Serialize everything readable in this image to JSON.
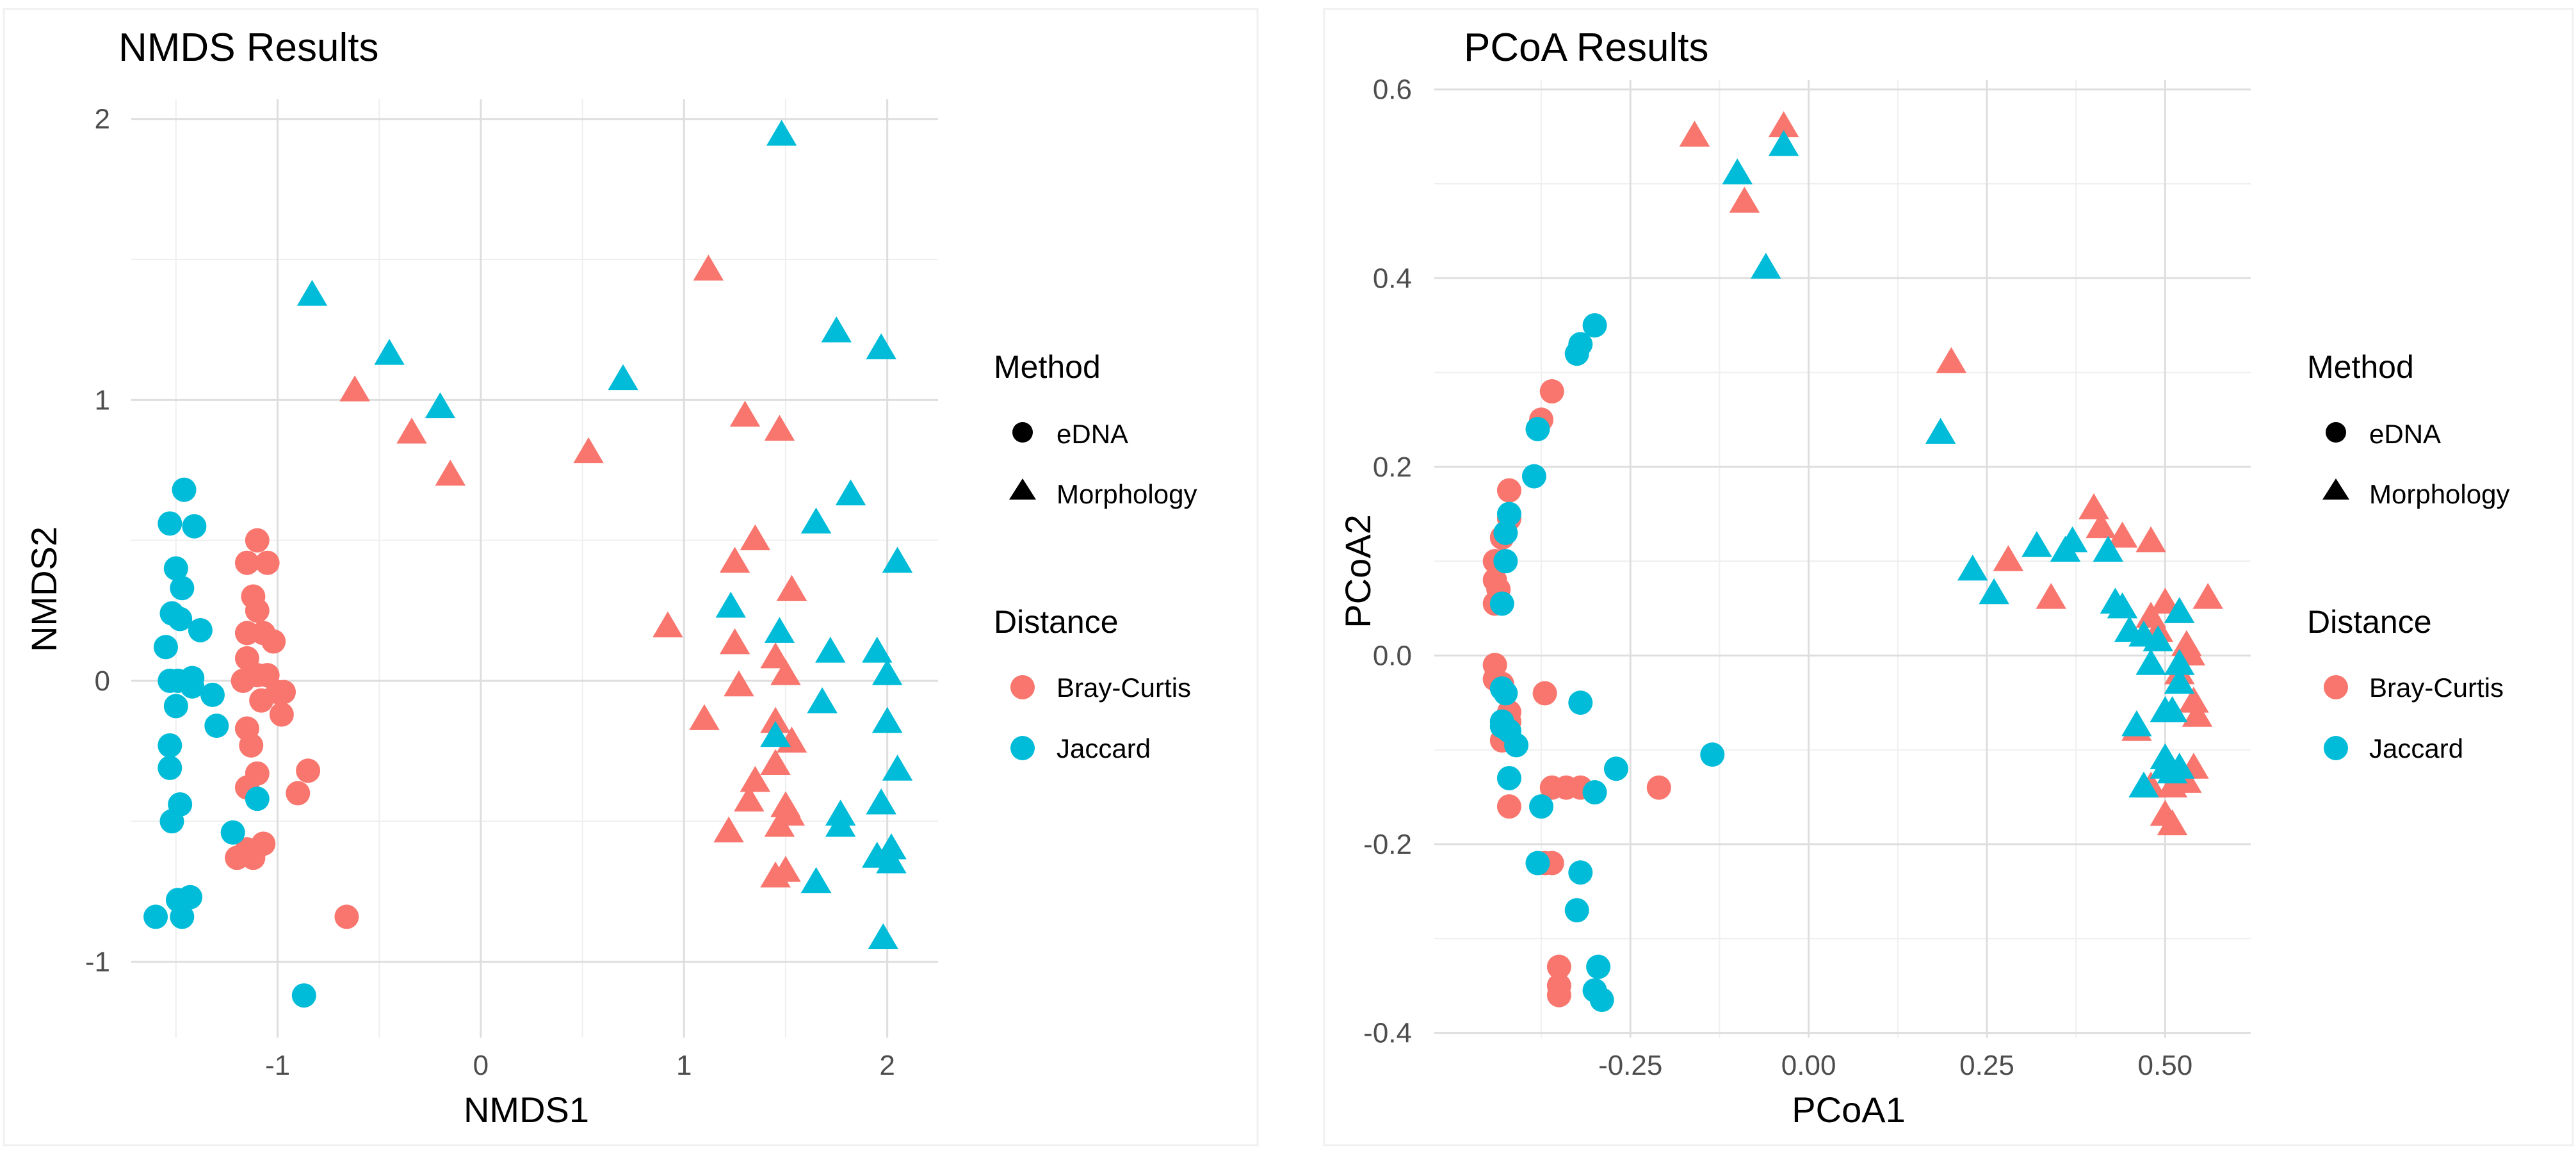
{
  "colors": {
    "bray_curtis": "#F8766D",
    "jaccard": "#00BCD8",
    "grid_major": "#DEDEDE",
    "grid_minor": "#EFEFEF",
    "text": "#000000",
    "tick_text": "#4D4D4D",
    "panel_border": "#F0F0F0"
  },
  "chart_data": [
    {
      "type": "scatter",
      "title": "NMDS Results",
      "xlabel": "NMDS1",
      "ylabel": "NMDS2",
      "xlim": [
        -1.72,
        2.25
      ],
      "ylim": [
        -1.27,
        2.07
      ],
      "xticks": [
        -1,
        0,
        1,
        2
      ],
      "xtick_labels": [
        "-1",
        "0",
        "1",
        "2"
      ],
      "yticks": [
        -1,
        0,
        1,
        2
      ],
      "ytick_labels": [
        "-1",
        "0",
        "1",
        "2"
      ],
      "legend": {
        "placement": "right",
        "method_title": "Method",
        "method_entries": [
          {
            "label": "eDNA",
            "shape": "circle"
          },
          {
            "label": "Morphology",
            "shape": "triangle"
          }
        ],
        "distance_title": "Distance",
        "distance_entries": [
          {
            "label": "Bray-Curtis",
            "color_key": "bray_curtis"
          },
          {
            "label": "Jaccard",
            "color_key": "jaccard"
          }
        ]
      },
      "series": [
        {
          "name": "Bray-Curtis eDNA",
          "shape": "circle",
          "color_key": "bray_curtis",
          "points": [
            [
              -1.1,
              0.5
            ],
            [
              -1.15,
              0.42
            ],
            [
              -1.05,
              0.42
            ],
            [
              -1.12,
              0.3
            ],
            [
              -1.1,
              0.25
            ],
            [
              -1.15,
              0.17
            ],
            [
              -1.07,
              0.17
            ],
            [
              -1.02,
              0.14
            ],
            [
              -1.15,
              0.08
            ],
            [
              -1.1,
              0.02
            ],
            [
              -1.05,
              0.02
            ],
            [
              -1.17,
              0.0
            ],
            [
              -1.0,
              -0.04
            ],
            [
              -1.08,
              -0.07
            ],
            [
              -0.97,
              -0.04
            ],
            [
              -0.98,
              -0.12
            ],
            [
              -1.15,
              -0.17
            ],
            [
              -1.13,
              -0.23
            ],
            [
              -1.1,
              -0.33
            ],
            [
              -0.85,
              -0.32
            ],
            [
              -0.9,
              -0.4
            ],
            [
              -1.15,
              -0.38
            ],
            [
              -1.07,
              -0.58
            ],
            [
              -1.15,
              -0.6
            ],
            [
              -1.2,
              -0.63
            ],
            [
              -1.12,
              -0.63
            ],
            [
              -0.66,
              -0.84
            ]
          ]
        },
        {
          "name": "Jaccard eDNA",
          "shape": "circle",
          "color_key": "jaccard",
          "points": [
            [
              -1.46,
              0.68
            ],
            [
              -1.53,
              0.56
            ],
            [
              -1.41,
              0.55
            ],
            [
              -1.5,
              0.4
            ],
            [
              -1.47,
              0.33
            ],
            [
              -1.52,
              0.24
            ],
            [
              -1.48,
              0.22
            ],
            [
              -1.38,
              0.18
            ],
            [
              -1.55,
              0.12
            ],
            [
              -1.49,
              0.0
            ],
            [
              -1.42,
              0.01
            ],
            [
              -1.53,
              0.0
            ],
            [
              -1.42,
              -0.02
            ],
            [
              -1.32,
              -0.05
            ],
            [
              -1.5,
              -0.09
            ],
            [
              -1.3,
              -0.16
            ],
            [
              -1.53,
              -0.23
            ],
            [
              -1.53,
              -0.31
            ],
            [
              -1.48,
              -0.44
            ],
            [
              -1.52,
              -0.5
            ],
            [
              -1.1,
              -0.42
            ],
            [
              -1.22,
              -0.54
            ],
            [
              -1.43,
              -0.77
            ],
            [
              -1.49,
              -0.78
            ],
            [
              -1.6,
              -0.84
            ],
            [
              -1.47,
              -0.84
            ],
            [
              -0.87,
              -1.12
            ]
          ]
        },
        {
          "name": "Bray-Curtis Morphology",
          "shape": "triangle",
          "color_key": "bray_curtis",
          "points": [
            [
              1.12,
              1.46
            ],
            [
              -0.62,
              1.03
            ],
            [
              -0.34,
              0.88
            ],
            [
              -0.15,
              0.73
            ],
            [
              0.53,
              0.81
            ],
            [
              1.3,
              0.94
            ],
            [
              1.47,
              0.89
            ],
            [
              1.35,
              0.5
            ],
            [
              1.25,
              0.42
            ],
            [
              1.53,
              0.32
            ],
            [
              0.92,
              0.19
            ],
            [
              1.25,
              0.13
            ],
            [
              1.45,
              0.08
            ],
            [
              1.27,
              -0.02
            ],
            [
              1.5,
              0.02
            ],
            [
              1.1,
              -0.14
            ],
            [
              1.45,
              -0.15
            ],
            [
              1.53,
              -0.22
            ],
            [
              1.45,
              -0.3
            ],
            [
              1.35,
              -0.36
            ],
            [
              1.32,
              -0.43
            ],
            [
              1.5,
              -0.45
            ],
            [
              1.52,
              -0.48
            ],
            [
              1.47,
              -0.52
            ],
            [
              1.22,
              -0.54
            ],
            [
              1.5,
              -0.68
            ],
            [
              1.45,
              -0.7
            ]
          ]
        },
        {
          "name": "Jaccard Morphology",
          "shape": "triangle",
          "color_key": "jaccard",
          "points": [
            [
              1.48,
              1.94
            ],
            [
              -0.83,
              1.37
            ],
            [
              -0.45,
              1.16
            ],
            [
              -0.2,
              0.97
            ],
            [
              0.7,
              1.07
            ],
            [
              1.75,
              1.24
            ],
            [
              1.97,
              1.18
            ],
            [
              1.82,
              0.66
            ],
            [
              1.65,
              0.56
            ],
            [
              2.05,
              0.42
            ],
            [
              1.23,
              0.26
            ],
            [
              1.47,
              0.17
            ],
            [
              1.95,
              0.1
            ],
            [
              1.72,
              0.1
            ],
            [
              2.0,
              0.02
            ],
            [
              1.68,
              -0.08
            ],
            [
              1.45,
              -0.2
            ],
            [
              2.0,
              -0.15
            ],
            [
              2.05,
              -0.32
            ],
            [
              1.97,
              -0.44
            ],
            [
              1.77,
              -0.48
            ],
            [
              1.77,
              -0.52
            ],
            [
              2.02,
              -0.6
            ],
            [
              2.02,
              -0.65
            ],
            [
              1.95,
              -0.63
            ],
            [
              1.65,
              -0.72
            ],
            [
              1.98,
              -0.92
            ]
          ]
        }
      ]
    },
    {
      "type": "scatter",
      "title": "PCoA Results",
      "xlabel": "PCoA1",
      "ylabel": "PCoA2",
      "xlim": [
        -0.525,
        0.62
      ],
      "ylim": [
        -0.405,
        0.61
      ],
      "xticks": [
        -0.25,
        0.0,
        0.25,
        0.5
      ],
      "xtick_labels": [
        "-0.25",
        "0.00",
        "0.25",
        "0.50"
      ],
      "yticks": [
        -0.4,
        -0.2,
        0.0,
        0.2,
        0.4,
        0.6
      ],
      "ytick_labels": [
        "-0.4",
        "-0.2",
        "0.0",
        "0.2",
        "0.4",
        "0.6"
      ],
      "legend": {
        "placement": "right",
        "method_title": "Method",
        "method_entries": [
          {
            "label": "eDNA",
            "shape": "circle"
          },
          {
            "label": "Morphology",
            "shape": "triangle"
          }
        ],
        "distance_title": "Distance",
        "distance_entries": [
          {
            "label": "Bray-Curtis",
            "color_key": "bray_curtis"
          },
          {
            "label": "Jaccard",
            "color_key": "jaccard"
          }
        ]
      },
      "series": [
        {
          "name": "Bray-Curtis eDNA",
          "shape": "circle",
          "color_key": "bray_curtis",
          "points": [
            [
              -0.36,
              0.28
            ],
            [
              -0.375,
              0.25
            ],
            [
              -0.42,
              0.175
            ],
            [
              -0.42,
              0.145
            ],
            [
              -0.43,
              0.125
            ],
            [
              -0.44,
              0.1
            ],
            [
              -0.43,
              0.1
            ],
            [
              -0.44,
              0.08
            ],
            [
              -0.435,
              0.07
            ],
            [
              -0.44,
              0.055
            ],
            [
              -0.44,
              -0.01
            ],
            [
              -0.44,
              -0.025
            ],
            [
              -0.43,
              -0.03
            ],
            [
              -0.37,
              -0.04
            ],
            [
              -0.42,
              -0.06
            ],
            [
              -0.42,
              -0.07
            ],
            [
              -0.43,
              -0.09
            ],
            [
              -0.36,
              -0.14
            ],
            [
              -0.34,
              -0.14
            ],
            [
              -0.32,
              -0.14
            ],
            [
              -0.21,
              -0.14
            ],
            [
              -0.42,
              -0.16
            ],
            [
              -0.36,
              -0.22
            ],
            [
              -0.37,
              -0.22
            ],
            [
              -0.35,
              -0.33
            ],
            [
              -0.35,
              -0.35
            ],
            [
              -0.35,
              -0.36
            ]
          ]
        },
        {
          "name": "Jaccard eDNA",
          "shape": "circle",
          "color_key": "jaccard",
          "points": [
            [
              -0.3,
              0.35
            ],
            [
              -0.32,
              0.33
            ],
            [
              -0.325,
              0.32
            ],
            [
              -0.38,
              0.24
            ],
            [
              -0.385,
              0.19
            ],
            [
              -0.42,
              0.15
            ],
            [
              -0.425,
              0.13
            ],
            [
              -0.425,
              0.1
            ],
            [
              -0.43,
              0.055
            ],
            [
              -0.43,
              -0.035
            ],
            [
              -0.425,
              -0.04
            ],
            [
              -0.43,
              -0.07
            ],
            [
              -0.42,
              -0.08
            ],
            [
              -0.43,
              -0.075
            ],
            [
              -0.32,
              -0.05
            ],
            [
              -0.41,
              -0.095
            ],
            [
              -0.27,
              -0.12
            ],
            [
              -0.135,
              -0.105
            ],
            [
              -0.42,
              -0.13
            ],
            [
              -0.3,
              -0.145
            ],
            [
              -0.375,
              -0.16
            ],
            [
              -0.38,
              -0.22
            ],
            [
              -0.32,
              -0.23
            ],
            [
              -0.325,
              -0.27
            ],
            [
              -0.295,
              -0.33
            ],
            [
              -0.3,
              -0.355
            ],
            [
              -0.29,
              -0.365
            ]
          ]
        },
        {
          "name": "Bray-Curtis Morphology",
          "shape": "triangle",
          "color_key": "bray_curtis",
          "points": [
            [
              -0.16,
              0.55
            ],
            [
              -0.035,
              0.56
            ],
            [
              -0.09,
              0.48
            ],
            [
              0.2,
              0.31
            ],
            [
              0.4,
              0.155
            ],
            [
              0.41,
              0.135
            ],
            [
              0.44,
              0.125
            ],
            [
              0.48,
              0.12
            ],
            [
              0.28,
              0.1
            ],
            [
              0.34,
              0.06
            ],
            [
              0.56,
              0.06
            ],
            [
              0.5,
              0.055
            ],
            [
              0.52,
              0.045
            ],
            [
              0.48,
              0.04
            ],
            [
              0.49,
              0.025
            ],
            [
              0.53,
              0.01
            ],
            [
              0.535,
              0.0
            ],
            [
              0.52,
              -0.02
            ],
            [
              0.54,
              -0.05
            ],
            [
              0.545,
              -0.065
            ],
            [
              0.46,
              -0.08
            ],
            [
              0.54,
              -0.12
            ],
            [
              0.53,
              -0.135
            ],
            [
              0.51,
              -0.14
            ],
            [
              0.48,
              -0.14
            ],
            [
              0.5,
              -0.17
            ],
            [
              0.51,
              -0.18
            ]
          ]
        },
        {
          "name": "Jaccard Morphology",
          "shape": "triangle",
          "color_key": "jaccard",
          "points": [
            [
              -0.1,
              0.51
            ],
            [
              -0.035,
              0.54
            ],
            [
              -0.06,
              0.41
            ],
            [
              0.185,
              0.235
            ],
            [
              0.32,
              0.115
            ],
            [
              0.37,
              0.12
            ],
            [
              0.36,
              0.11
            ],
            [
              0.42,
              0.11
            ],
            [
              0.23,
              0.09
            ],
            [
              0.26,
              0.065
            ],
            [
              0.43,
              0.055
            ],
            [
              0.44,
              0.05
            ],
            [
              0.52,
              0.045
            ],
            [
              0.45,
              0.025
            ],
            [
              0.47,
              0.02
            ],
            [
              0.49,
              0.015
            ],
            [
              0.48,
              -0.01
            ],
            [
              0.52,
              -0.01
            ],
            [
              0.52,
              -0.03
            ],
            [
              0.5,
              -0.06
            ],
            [
              0.51,
              -0.06
            ],
            [
              0.46,
              -0.075
            ],
            [
              0.5,
              -0.11
            ],
            [
              0.5,
              -0.12
            ],
            [
              0.51,
              -0.125
            ],
            [
              0.47,
              -0.14
            ],
            [
              0.52,
              -0.12
            ]
          ]
        }
      ]
    }
  ]
}
